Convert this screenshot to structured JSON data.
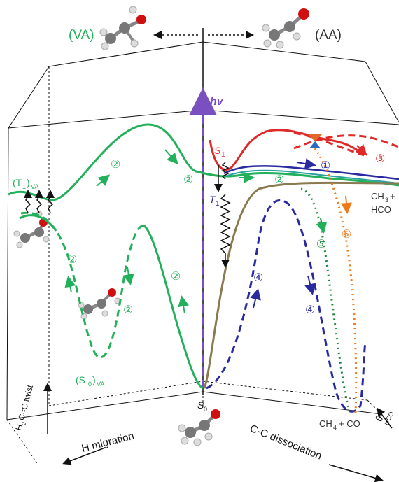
{
  "labels": {
    "va": "(VA)",
    "aa": "(AA)",
    "hv": "hv",
    "s1": "S",
    "s1_sub": "1",
    "t1": "T",
    "t1_sub": "1",
    "t1_va": "(T",
    "t1_va_sub": "1",
    "t1_va_close": ")",
    "t1_va_subscript": "VA",
    "s0_va": "(S",
    "s0_va_sub": "0",
    "s0_va_close": ")",
    "s0_va_subscript": "VA",
    "s0": "S",
    "s0_sub": "0",
    "ch3": "CH",
    "ch3_sub": "3",
    "ch3_plus": "+",
    "hco": "HCO",
    "ch4_co": "CH",
    "ch4_sub": "4",
    "ch4_rest": "+ CO",
    "theta": "θ",
    "theta_sub": "HCO",
    "twist": "H",
    "twist_sub": "2",
    "twist_rest": "C=C twist",
    "h_migration": "H migration",
    "cc_dissociation": "C-C dissociation"
  },
  "pathway_markers": {
    "p1": "①",
    "p2": "②",
    "p3": "③",
    "p4": "④",
    "p5": "⑤",
    "p6": "⑥"
  },
  "colors": {
    "green": "#22b05a",
    "red": "#e02a2a",
    "blue": "#2a2aa0",
    "orange": "#f07a1a",
    "olive": "#8a7a50",
    "purple": "#7a4fc0",
    "dark_green": "#1a8a3a",
    "black": "#111111",
    "teal": "#2aa0a0"
  }
}
